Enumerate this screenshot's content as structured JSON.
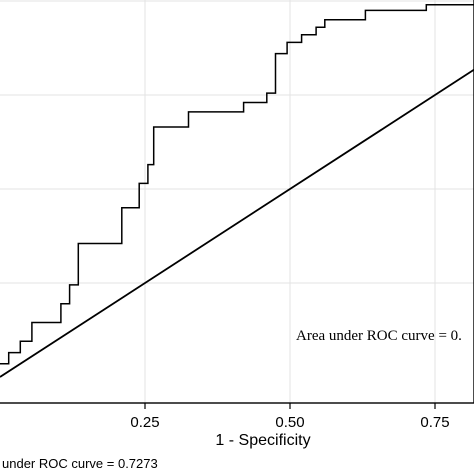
{
  "chart_data": {
    "type": "line",
    "title": "",
    "xlabel": "1 - Specificity",
    "ylabel": "",
    "xlim": [
      0.0,
      0.87
    ],
    "ylim": [
      0.0,
      1.0
    ],
    "grid": true,
    "x_ticks": [
      0.25,
      0.5,
      0.75
    ],
    "x_tick_labels": [
      "0.25",
      "0.50",
      "0.75"
    ],
    "y_gridlines": [
      0.25,
      0.5,
      0.75,
      1.0
    ],
    "annotation": "Area under ROC curve = 0.",
    "footer_note": "under ROC curve = 0.7273",
    "series": [
      {
        "kind": "roc",
        "x": [
          0.0,
          0.015,
          0.015,
          0.035,
          0.035,
          0.055,
          0.055,
          0.105,
          0.105,
          0.12,
          0.12,
          0.135,
          0.135,
          0.21,
          0.21,
          0.24,
          0.24,
          0.255,
          0.255,
          0.265,
          0.265,
          0.325,
          0.325,
          0.42,
          0.42,
          0.46,
          0.46,
          0.475,
          0.475,
          0.495,
          0.495,
          0.52,
          0.52,
          0.545,
          0.545,
          0.56,
          0.56,
          0.63,
          0.63,
          0.735,
          0.735,
          0.87
        ],
        "y": [
          0.035,
          0.035,
          0.065,
          0.065,
          0.095,
          0.095,
          0.145,
          0.145,
          0.195,
          0.195,
          0.245,
          0.245,
          0.355,
          0.355,
          0.45,
          0.45,
          0.515,
          0.515,
          0.565,
          0.565,
          0.665,
          0.665,
          0.705,
          0.705,
          0.73,
          0.73,
          0.755,
          0.755,
          0.86,
          0.86,
          0.89,
          0.89,
          0.91,
          0.91,
          0.93,
          0.93,
          0.95,
          0.95,
          0.975,
          0.975,
          0.99,
          0.99
        ]
      },
      {
        "kind": "reference",
        "x": [
          0.0,
          0.87
        ],
        "y": [
          0.0,
          0.87
        ]
      }
    ]
  }
}
